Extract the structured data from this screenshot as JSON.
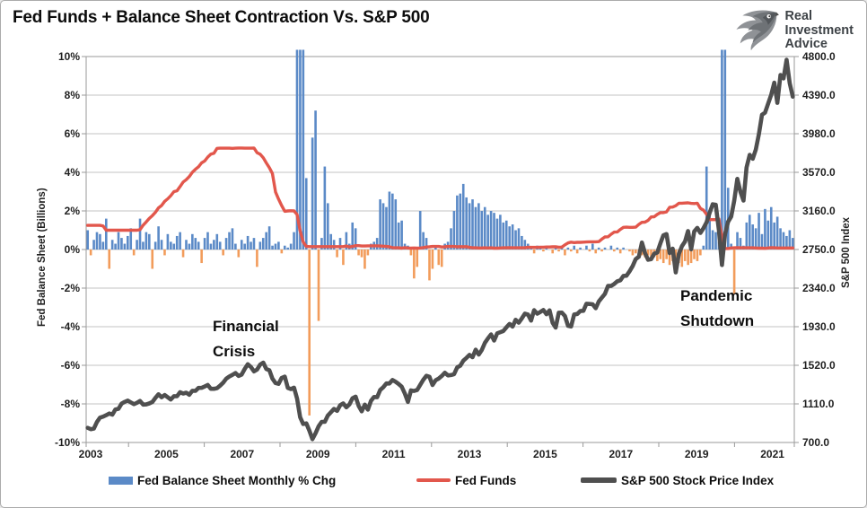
{
  "header": {
    "title": "Fed Funds + Balance Sheet Contraction Vs. S&P 500",
    "brand": {
      "name": "Real Investment Advice",
      "line1": "Real",
      "line2": "Investment",
      "line3": "Advice",
      "icon": "eagle-icon"
    }
  },
  "colors": {
    "bar_positive": "#5B8AC7",
    "bar_negative": "#F29C5B",
    "fed_funds_line": "#E2574C",
    "sp500_line": "#4F4F4F",
    "gridline": "#C3C3C3",
    "axis_frame": "#9A9A9A"
  },
  "chart_data": {
    "type": "combo",
    "title": "Fed Funds + Balance Sheet Contraction Vs. S&P 500",
    "x": {
      "interval": "monthly",
      "start": "2003-01",
      "end": "2022-02",
      "year_tick_labels": [
        "2003",
        "2005",
        "2007",
        "2009",
        "2011",
        "2013",
        "2015",
        "2017",
        "2019",
        "2021"
      ]
    },
    "left_axis": {
      "title": "Fed Balance Sheet (Billions)",
      "tick_labels": [
        "10%",
        "8%",
        "6%",
        "4%",
        "2%",
        "0%",
        "-2%",
        "-4%",
        "-6%",
        "-8%",
        "-10%"
      ],
      "max": 10,
      "min": -10,
      "unit": "percent"
    },
    "right_axis": {
      "title": "S&P 500 Index",
      "tick_labels": [
        "4800.0",
        "4390.0",
        "3980.0",
        "3570.0",
        "3160.0",
        "2750.0",
        "2340.0",
        "1930.0",
        "1520.0",
        "1110.0",
        "700.0"
      ],
      "max": 4800,
      "min": 700
    },
    "grid": "horizontal-only",
    "legend_position": "bottom",
    "series": [
      {
        "name": "Fed Balance Sheet Monthly % Chg",
        "type": "bar",
        "axis": "left",
        "color_positive": "#5B8AC7",
        "color_negative": "#F29C5B",
        "clip_display_above": 10.35,
        "values": [
          1.0,
          -0.3,
          0.5,
          0.9,
          0.8,
          0.4,
          1.6,
          -1.0,
          0.5,
          0.3,
          0.9,
          0.6,
          0.3,
          0.7,
          1.1,
          -0.3,
          0.5,
          1.6,
          0.4,
          0.9,
          0.8,
          -1.0,
          0.4,
          1.2,
          0.5,
          -0.3,
          0.8,
          0.4,
          0.3,
          0.7,
          0.9,
          -0.4,
          0.5,
          0.3,
          0.8,
          0.6,
          0.4,
          -0.7,
          0.6,
          0.9,
          0.3,
          0.5,
          0.8,
          0.4,
          -0.3,
          0.6,
          0.9,
          1.1,
          0.3,
          -0.4,
          0.5,
          0.3,
          0.7,
          0.4,
          0.6,
          -0.9,
          0.4,
          0.6,
          0.9,
          1.2,
          0.2,
          0.3,
          0.4,
          -0.2,
          0.2,
          0.1,
          0.3,
          0.9,
          18.0,
          44.0,
          12.0,
          3.7,
          -8.6,
          5.8,
          7.2,
          -3.7,
          0.6,
          4.3,
          2.4,
          0.8,
          0.5,
          -0.4,
          0.6,
          -0.8,
          0.9,
          0.3,
          1.4,
          1.1,
          -0.3,
          -0.4,
          -1.0,
          -0.3,
          0.3,
          0.4,
          0.6,
          2.6,
          2.4,
          2.2,
          3.0,
          2.9,
          2.6,
          1.4,
          1.5,
          0.3,
          0.2,
          -0.3,
          -1.5,
          -0.9,
          2.0,
          0.9,
          0.6,
          -1.6,
          -1.0,
          0.2,
          -0.8,
          -0.9,
          0.3,
          0.4,
          1.1,
          2.0,
          2.8,
          2.9,
          3.4,
          2.7,
          2.4,
          2.6,
          2.2,
          2.4,
          2.0,
          2.2,
          1.8,
          2.0,
          1.9,
          1.6,
          1.8,
          1.4,
          1.5,
          1.2,
          1.3,
          1.0,
          1.1,
          0.7,
          0.5,
          0.3,
          0.1,
          -0.2,
          0.2,
          0.1,
          -0.1,
          0.1,
          0.0,
          -0.2,
          0.1,
          -0.1,
          0.2,
          -0.3,
          0.1,
          -0.1,
          0.2,
          -0.2,
          0.1,
          0.0,
          0.2,
          -0.1,
          0.3,
          -0.2,
          0.1,
          -0.1,
          0.1,
          0.0,
          0.2,
          -0.1,
          0.1,
          -0.2,
          0.1,
          0.0,
          -0.1,
          -0.3,
          -0.2,
          -0.3,
          -0.3,
          -0.4,
          -0.3,
          -0.5,
          -0.4,
          -0.6,
          -0.5,
          -0.7,
          -0.5,
          -0.8,
          -0.6,
          -0.7,
          -0.7,
          -0.9,
          -0.6,
          -0.8,
          -0.7,
          -0.5,
          -0.6,
          -0.3,
          0.2,
          4.3,
          1.9,
          1.0,
          0.9,
          0.4,
          15.0,
          11.0,
          3.2,
          0.3,
          -2.3,
          0.9,
          0.6,
          0.2,
          1.4,
          1.8,
          1.3,
          1.1,
          1.9,
          0.8,
          2.1,
          1.5,
          2.2,
          1.4,
          1.7,
          1.1,
          0.9,
          0.7,
          1.0,
          0.6
        ]
      },
      {
        "name": "Fed Funds",
        "type": "line",
        "axis": "left",
        "color": "#E2574C",
        "values": [
          1.25,
          1.25,
          1.25,
          1.25,
          1.25,
          1.22,
          1.0,
          1.0,
          1.0,
          1.0,
          1.0,
          1.0,
          1.0,
          1.0,
          1.0,
          1.0,
          1.0,
          1.03,
          1.26,
          1.43,
          1.61,
          1.76,
          1.93,
          2.16,
          2.28,
          2.5,
          2.63,
          2.79,
          3.0,
          3.04,
          3.26,
          3.5,
          3.62,
          3.78,
          4.0,
          4.16,
          4.29,
          4.49,
          4.59,
          4.79,
          4.94,
          4.99,
          5.24,
          5.25,
          5.25,
          5.25,
          5.25,
          5.24,
          5.25,
          5.26,
          5.26,
          5.25,
          5.25,
          5.25,
          5.26,
          5.02,
          4.94,
          4.76,
          4.49,
          4.24,
          3.94,
          2.98,
          2.61,
          2.28,
          1.98,
          2.0,
          2.01,
          2.0,
          1.81,
          0.97,
          0.39,
          0.16,
          0.15,
          0.15,
          0.15,
          0.15,
          0.15,
          0.15,
          0.15,
          0.15,
          0.15,
          0.15,
          0.15,
          0.15,
          0.18,
          0.13,
          0.16,
          0.2,
          0.2,
          0.18,
          0.18,
          0.19,
          0.19,
          0.19,
          0.19,
          0.18,
          0.17,
          0.16,
          0.14,
          0.1,
          0.09,
          0.09,
          0.07,
          0.1,
          0.08,
          0.07,
          0.08,
          0.07,
          0.08,
          0.1,
          0.13,
          0.14,
          0.16,
          0.16,
          0.16,
          0.13,
          0.14,
          0.16,
          0.16,
          0.16,
          0.14,
          0.15,
          0.14,
          0.15,
          0.11,
          0.09,
          0.09,
          0.08,
          0.08,
          0.09,
          0.08,
          0.09,
          0.07,
          0.07,
          0.08,
          0.09,
          0.09,
          0.1,
          0.09,
          0.09,
          0.09,
          0.09,
          0.09,
          0.12,
          0.11,
          0.11,
          0.11,
          0.12,
          0.12,
          0.13,
          0.13,
          0.14,
          0.14,
          0.12,
          0.12,
          0.24,
          0.34,
          0.38,
          0.36,
          0.37,
          0.37,
          0.38,
          0.39,
          0.4,
          0.4,
          0.4,
          0.41,
          0.54,
          0.65,
          0.66,
          0.79,
          0.9,
          0.91,
          1.04,
          1.15,
          1.16,
          1.15,
          1.15,
          1.16,
          1.3,
          1.41,
          1.42,
          1.51,
          1.69,
          1.7,
          1.82,
          1.91,
          1.91,
          1.95,
          2.19,
          2.2,
          2.27,
          2.4,
          2.4,
          2.41,
          2.42,
          2.39,
          2.38,
          2.4,
          2.13,
          2.04,
          1.83,
          1.55,
          1.55,
          1.55,
          1.58,
          0.65,
          0.05,
          0.05,
          0.08,
          0.09,
          0.1,
          0.09,
          0.09,
          0.09,
          0.09,
          0.09,
          0.08,
          0.07,
          0.07,
          0.06,
          0.08,
          0.1,
          0.09,
          0.08,
          0.08,
          0.08,
          0.08,
          0.08,
          0.08
        ]
      },
      {
        "name": "S&P 500 Stock Price Index",
        "type": "line",
        "axis": "right",
        "color": "#4F4F4F",
        "values": [
          855,
          841,
          848,
          917,
          964,
          975,
          990,
          1008,
          996,
          1051,
          1058,
          1112,
          1131,
          1145,
          1126,
          1107,
          1121,
          1141,
          1102,
          1104,
          1115,
          1130,
          1174,
          1212,
          1181,
          1204,
          1181,
          1157,
          1192,
          1191,
          1234,
          1220,
          1229,
          1207,
          1249,
          1248,
          1280,
          1281,
          1295,
          1311,
          1270,
          1270,
          1277,
          1304,
          1336,
          1378,
          1401,
          1418,
          1438,
          1407,
          1421,
          1482,
          1531,
          1503,
          1455,
          1474,
          1527,
          1549,
          1481,
          1468,
          1379,
          1331,
          1323,
          1386,
          1400,
          1280,
          1267,
          1283,
          1166,
          969,
          896,
          903,
          826,
          735,
          798,
          873,
          919,
          919,
          987,
          1021,
          1057,
          1036,
          1096,
          1115,
          1074,
          1104,
          1169,
          1187,
          1089,
          1031,
          1102,
          1049,
          1141,
          1183,
          1181,
          1258,
          1286,
          1327,
          1326,
          1364,
          1345,
          1321,
          1292,
          1219,
          1131,
          1253,
          1247,
          1258,
          1312,
          1366,
          1408,
          1398,
          1310,
          1362,
          1379,
          1407,
          1441,
          1412,
          1416,
          1426,
          1498,
          1515,
          1569,
          1598,
          1631,
          1606,
          1686,
          1633,
          1682,
          1757,
          1806,
          1848,
          1783,
          1859,
          1872,
          1884,
          1924,
          1960,
          1931,
          2003,
          1972,
          2018,
          2068,
          2059,
          1995,
          2105,
          2068,
          2086,
          2107,
          2063,
          2104,
          1972,
          1920,
          2079,
          2080,
          2044,
          1940,
          1932,
          2060,
          2065,
          2097,
          2099,
          2174,
          2171,
          2168,
          2126,
          2199,
          2239,
          2279,
          2364,
          2363,
          2384,
          2412,
          2423,
          2470,
          2472,
          2519,
          2575,
          2648,
          2674,
          2824,
          2714,
          2641,
          2648,
          2705,
          2718,
          2816,
          2902,
          2914,
          2712,
          2760,
          2507,
          2704,
          2785,
          2834,
          2946,
          2752,
          2942,
          2980,
          2926,
          2977,
          3038,
          3141,
          3231,
          3226,
          2954,
          2585,
          2912,
          3044,
          3100,
          3271,
          3500,
          3363,
          3270,
          3622,
          3756,
          3714,
          3811,
          3973,
          4181,
          4204,
          4298,
          4395,
          4523,
          4308,
          4605,
          4567,
          4766,
          4516,
          4374
        ]
      }
    ],
    "annotations": [
      {
        "line1": "Financial",
        "line2": "Crisis"
      },
      {
        "line1": "Pandemic",
        "line2": "Shutdown"
      }
    ]
  },
  "legend": {
    "items": [
      {
        "label": "Fed Balance Sheet Monthly % Chg",
        "swatch": "bar",
        "color": "#5B8AC7"
      },
      {
        "label": "Fed Funds",
        "swatch": "line",
        "color": "#E2574C"
      },
      {
        "label": "S&P 500 Stock Price Index",
        "swatch": "line-thick",
        "color": "#4F4F4F"
      }
    ]
  }
}
